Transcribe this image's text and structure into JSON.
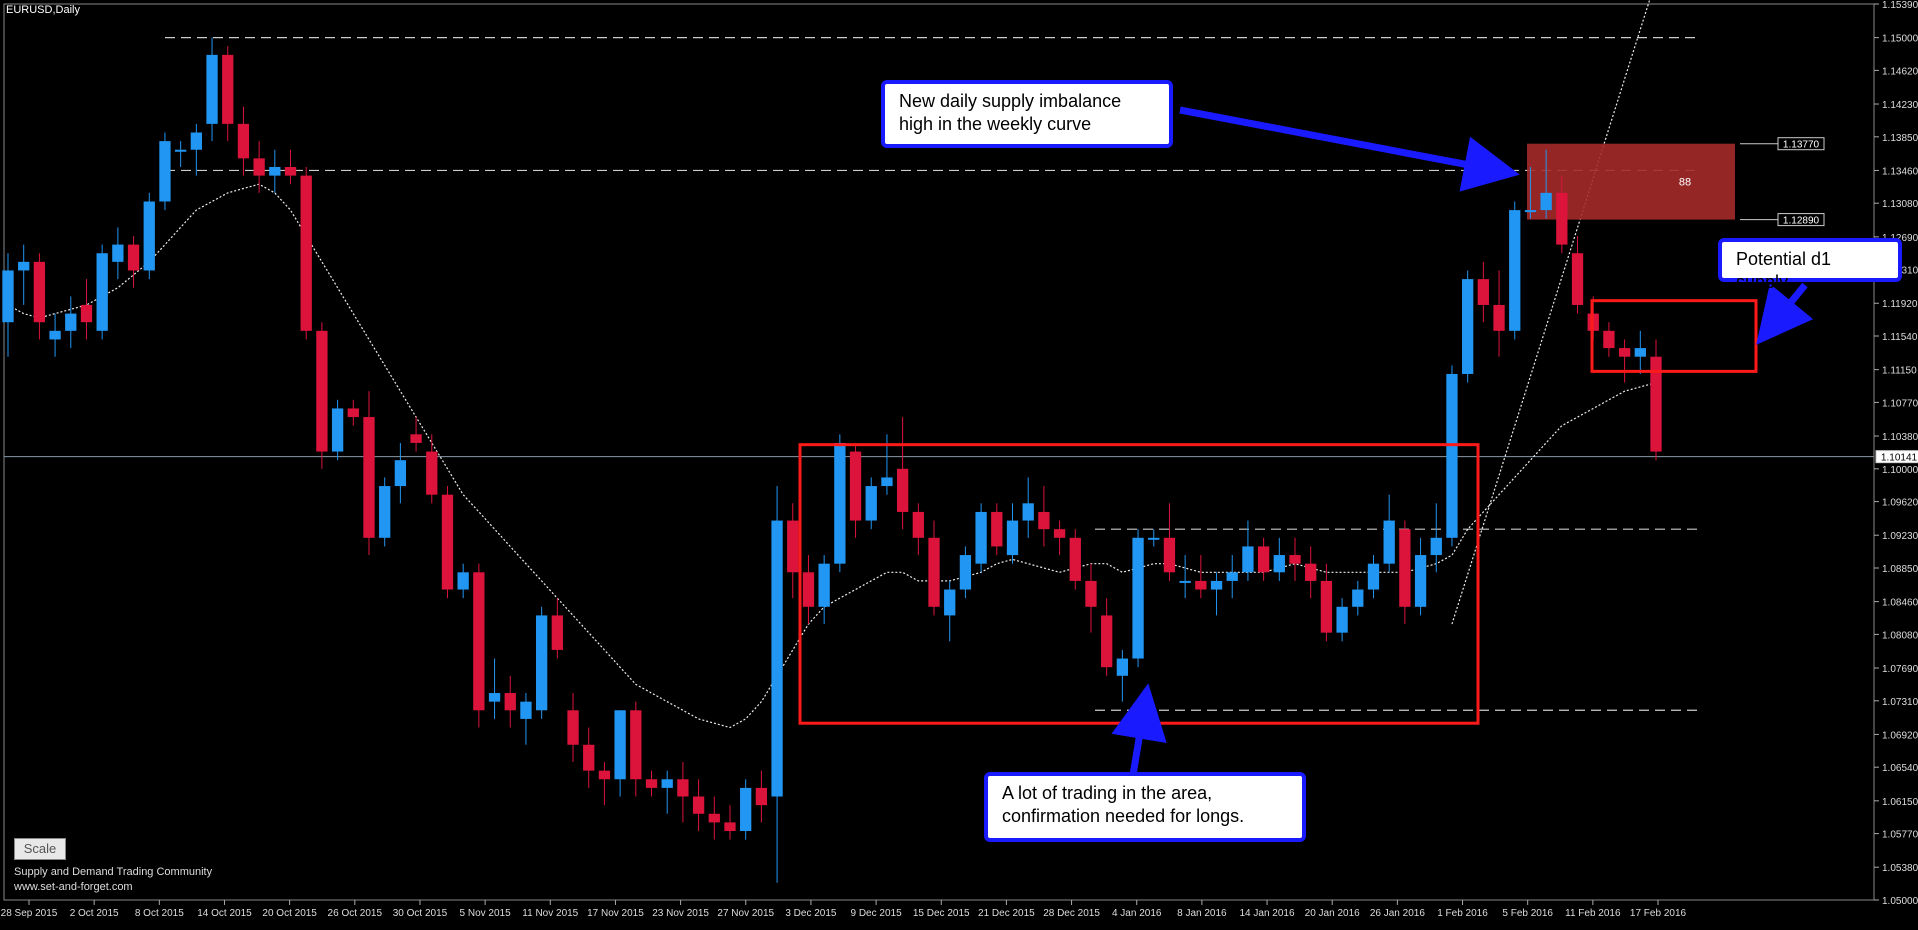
{
  "window_title": "EURUSD,Daily",
  "scale_button": "Scale",
  "watermark": {
    "line1": "Supply and Demand Trading Community",
    "line2": "www.set-and-forget.com"
  },
  "callouts": {
    "supply_high": "New daily supply imbalance high in the weekly curve",
    "potential_d1": "Potential d1 supply",
    "trading_area": "A lot of trading in the area, confirmation needed for longs."
  },
  "zone_label": "88",
  "colors": {
    "bull": "#2196f3",
    "bear": "#dc143c",
    "zone": "#a52a2a",
    "box": "#ff1a1a",
    "arrow": "#1a1aff"
  },
  "chart_data": {
    "type": "candlestick",
    "symbol": "EURUSD",
    "timeframe": "Daily",
    "ylim": [
      1.05,
      1.1539
    ],
    "y_ticks": [
      "1.15390",
      "1.15000",
      "1.14620",
      "1.14230",
      "1.13850",
      "1.13460",
      "1.13080",
      "1.12690",
      "1.12310",
      "1.11920",
      "1.11540",
      "1.11150",
      "1.10770",
      "1.10380",
      "1.10000",
      "1.09620",
      "1.09230",
      "1.08850",
      "1.08460",
      "1.08080",
      "1.07690",
      "1.07310",
      "1.06920",
      "1.06540",
      "1.06150",
      "1.05770",
      "1.05380",
      "1.05000"
    ],
    "x_labels": [
      "28 Sep 2015",
      "2 Oct 2015",
      "8 Oct 2015",
      "14 Oct 2015",
      "20 Oct 2015",
      "26 Oct 2015",
      "30 Oct 2015",
      "5 Nov 2015",
      "11 Nov 2015",
      "17 Nov 2015",
      "23 Nov 2015",
      "27 Nov 2015",
      "3 Dec 2015",
      "9 Dec 2015",
      "15 Dec 2015",
      "21 Dec 2015",
      "28 Dec 2015",
      "4 Jan 2016",
      "8 Jan 2016",
      "14 Jan 2016",
      "20 Jan 2016",
      "26 Jan 2016",
      "1 Feb 2016",
      "5 Feb 2016",
      "11 Feb 2016",
      "17 Feb 2016"
    ],
    "price_labels": {
      "current": "1.10141",
      "zone_top": "1.13770",
      "zone_bottom": "1.12890"
    },
    "candles": [
      [
        1.117,
        1.125,
        1.113,
        1.123
      ],
      [
        1.123,
        1.126,
        1.119,
        1.124
      ],
      [
        1.124,
        1.125,
        1.115,
        1.117
      ],
      [
        1.115,
        1.118,
        1.113,
        1.116
      ],
      [
        1.116,
        1.12,
        1.114,
        1.118
      ],
      [
        1.119,
        1.122,
        1.115,
        1.117
      ],
      [
        1.116,
        1.126,
        1.115,
        1.125
      ],
      [
        1.124,
        1.128,
        1.122,
        1.126
      ],
      [
        1.126,
        1.127,
        1.121,
        1.123
      ],
      [
        1.123,
        1.132,
        1.122,
        1.131
      ],
      [
        1.131,
        1.139,
        1.13,
        1.138
      ],
      [
        1.137,
        1.138,
        1.135,
        1.137
      ],
      [
        1.137,
        1.14,
        1.134,
        1.139
      ],
      [
        1.14,
        1.15,
        1.138,
        1.148
      ],
      [
        1.148,
        1.149,
        1.138,
        1.14
      ],
      [
        1.14,
        1.142,
        1.134,
        1.136
      ],
      [
        1.136,
        1.138,
        1.132,
        1.134
      ],
      [
        1.134,
        1.137,
        1.132,
        1.135
      ],
      [
        1.135,
        1.137,
        1.133,
        1.134
      ],
      [
        1.134,
        1.135,
        1.115,
        1.116
      ],
      [
        1.116,
        1.117,
        1.1,
        1.102
      ],
      [
        1.102,
        1.108,
        1.101,
        1.107
      ],
      [
        1.107,
        1.108,
        1.105,
        1.106
      ],
      [
        1.106,
        1.109,
        1.09,
        1.092
      ],
      [
        1.092,
        1.099,
        1.091,
        1.098
      ],
      [
        1.098,
        1.103,
        1.096,
        1.101
      ],
      [
        1.104,
        1.106,
        1.102,
        1.103
      ],
      [
        1.102,
        1.104,
        1.096,
        1.097
      ],
      [
        1.097,
        1.098,
        1.085,
        1.086
      ],
      [
        1.086,
        1.089,
        1.085,
        1.088
      ],
      [
        1.088,
        1.089,
        1.07,
        1.072
      ],
      [
        1.073,
        1.078,
        1.071,
        1.074
      ],
      [
        1.074,
        1.076,
        1.07,
        1.072
      ],
      [
        1.071,
        1.074,
        1.068,
        1.073
      ],
      [
        1.072,
        1.084,
        1.071,
        1.083
      ],
      [
        1.083,
        1.085,
        1.078,
        1.079
      ],
      [
        1.072,
        1.074,
        1.066,
        1.068
      ],
      [
        1.068,
        1.07,
        1.063,
        1.065
      ],
      [
        1.065,
        1.066,
        1.061,
        1.064
      ],
      [
        1.064,
        1.072,
        1.062,
        1.072
      ],
      [
        1.072,
        1.073,
        1.062,
        1.064
      ],
      [
        1.064,
        1.065,
        1.062,
        1.063
      ],
      [
        1.063,
        1.065,
        1.06,
        1.064
      ],
      [
        1.064,
        1.066,
        1.059,
        1.062
      ],
      [
        1.062,
        1.064,
        1.058,
        1.06
      ],
      [
        1.06,
        1.062,
        1.057,
        1.059
      ],
      [
        1.059,
        1.061,
        1.057,
        1.058
      ],
      [
        1.058,
        1.064,
        1.057,
        1.063
      ],
      [
        1.063,
        1.065,
        1.059,
        1.061
      ],
      [
        1.062,
        1.098,
        1.052,
        1.094
      ],
      [
        1.094,
        1.096,
        1.085,
        1.088
      ],
      [
        1.088,
        1.09,
        1.082,
        1.084
      ],
      [
        1.084,
        1.09,
        1.082,
        1.089
      ],
      [
        1.089,
        1.104,
        1.088,
        1.103
      ],
      [
        1.102,
        1.103,
        1.092,
        1.094
      ],
      [
        1.094,
        1.099,
        1.093,
        1.098
      ],
      [
        1.098,
        1.104,
        1.097,
        1.099
      ],
      [
        1.1,
        1.106,
        1.093,
        1.095
      ],
      [
        1.095,
        1.096,
        1.09,
        1.092
      ],
      [
        1.092,
        1.094,
        1.083,
        1.084
      ],
      [
        1.083,
        1.087,
        1.08,
        1.086
      ],
      [
        1.086,
        1.091,
        1.085,
        1.09
      ],
      [
        1.089,
        1.096,
        1.088,
        1.095
      ],
      [
        1.095,
        1.096,
        1.09,
        1.091
      ],
      [
        1.09,
        1.096,
        1.089,
        1.094
      ],
      [
        1.094,
        1.099,
        1.092,
        1.096
      ],
      [
        1.095,
        1.098,
        1.091,
        1.093
      ],
      [
        1.093,
        1.094,
        1.09,
        1.092
      ],
      [
        1.092,
        1.093,
        1.086,
        1.087
      ],
      [
        1.087,
        1.089,
        1.081,
        1.084
      ],
      [
        1.083,
        1.085,
        1.076,
        1.077
      ],
      [
        1.076,
        1.079,
        1.073,
        1.078
      ],
      [
        1.078,
        1.093,
        1.077,
        1.092
      ],
      [
        1.092,
        1.093,
        1.091,
        1.092
      ],
      [
        1.092,
        1.096,
        1.087,
        1.088
      ],
      [
        1.087,
        1.09,
        1.085,
        1.087
      ],
      [
        1.087,
        1.09,
        1.085,
        1.086
      ],
      [
        1.086,
        1.088,
        1.083,
        1.087
      ],
      [
        1.087,
        1.09,
        1.085,
        1.088
      ],
      [
        1.088,
        1.094,
        1.087,
        1.091
      ],
      [
        1.091,
        1.092,
        1.087,
        1.088
      ],
      [
        1.088,
        1.092,
        1.087,
        1.09
      ],
      [
        1.09,
        1.092,
        1.087,
        1.089
      ],
      [
        1.089,
        1.091,
        1.085,
        1.087
      ],
      [
        1.087,
        1.089,
        1.08,
        1.081
      ],
      [
        1.081,
        1.085,
        1.08,
        1.084
      ],
      [
        1.084,
        1.087,
        1.083,
        1.086
      ],
      [
        1.086,
        1.09,
        1.085,
        1.089
      ],
      [
        1.089,
        1.097,
        1.088,
        1.094
      ],
      [
        1.093,
        1.094,
        1.082,
        1.084
      ],
      [
        1.084,
        1.092,
        1.083,
        1.09
      ],
      [
        1.09,
        1.096,
        1.088,
        1.092
      ],
      [
        1.092,
        1.112,
        1.091,
        1.111
      ],
      [
        1.111,
        1.123,
        1.11,
        1.122
      ],
      [
        1.122,
        1.124,
        1.117,
        1.119
      ],
      [
        1.119,
        1.123,
        1.113,
        1.116
      ],
      [
        1.116,
        1.131,
        1.115,
        1.13
      ],
      [
        1.13,
        1.135,
        1.129,
        1.13
      ],
      [
        1.13,
        1.137,
        1.129,
        1.132
      ],
      [
        1.132,
        1.134,
        1.125,
        1.126
      ],
      [
        1.125,
        1.127,
        1.118,
        1.119
      ],
      [
        1.118,
        1.12,
        1.115,
        1.116
      ],
      [
        1.116,
        1.117,
        1.113,
        1.114
      ],
      [
        1.114,
        1.115,
        1.11,
        1.113
      ],
      [
        1.113,
        1.116,
        1.111,
        1.114
      ],
      [
        1.113,
        1.115,
        1.101,
        1.102
      ]
    ],
    "ma": [
      1.119,
      1.118,
      1.1175,
      1.118,
      1.1185,
      1.119,
      1.12,
      1.121,
      1.1225,
      1.124,
      1.126,
      1.128,
      1.13,
      1.131,
      1.132,
      1.1325,
      1.133,
      1.132,
      1.13,
      1.127,
      1.124,
      1.121,
      1.118,
      1.115,
      1.112,
      1.109,
      1.106,
      1.103,
      1.1,
      1.097,
      1.095,
      1.093,
      1.091,
      1.089,
      1.087,
      1.085,
      1.083,
      1.081,
      1.079,
      1.077,
      1.075,
      1.074,
      1.073,
      1.072,
      1.071,
      1.0705,
      1.07,
      1.071,
      1.073,
      1.076,
      1.079,
      1.082,
      1.084,
      1.085,
      1.086,
      1.087,
      1.088,
      1.088,
      1.087,
      1.087,
      1.087,
      1.0875,
      1.088,
      1.089,
      1.0895,
      1.089,
      1.0885,
      1.088,
      1.0885,
      1.089,
      1.089,
      1.088,
      1.0885,
      1.089,
      1.089,
      1.0885,
      1.088,
      1.088,
      1.088,
      1.088,
      1.088,
      1.0885,
      1.089,
      1.0885,
      1.088,
      1.088,
      1.088,
      1.088,
      1.088,
      1.088,
      1.0885,
      1.089,
      1.09,
      1.093,
      1.095,
      1.097,
      1.099,
      1.101,
      1.103,
      1.105,
      1.106,
      1.107,
      1.108,
      1.109,
      1.1095,
      1.11
    ]
  }
}
